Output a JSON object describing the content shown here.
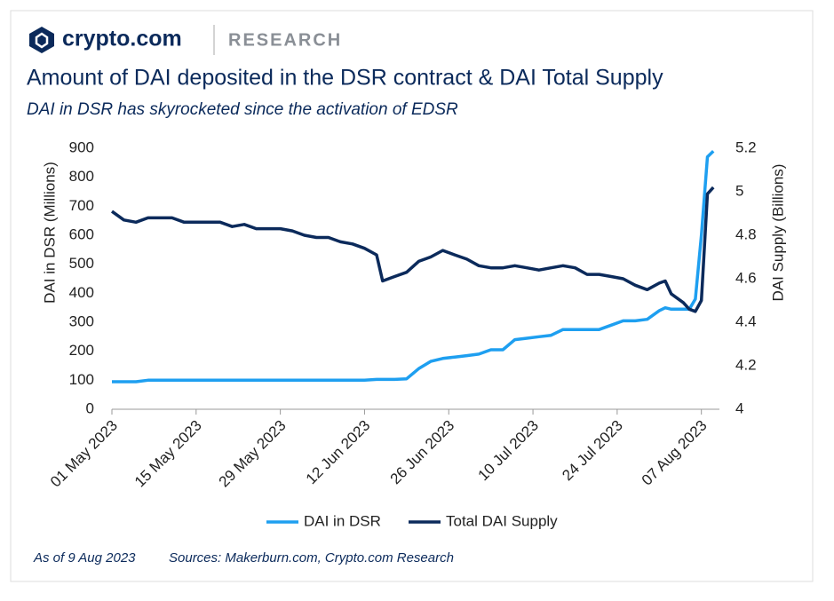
{
  "header": {
    "brand": "crypto.com",
    "section": "RESEARCH"
  },
  "chart_data": {
    "type": "line",
    "title": "Amount of DAI deposited in the DSR contract & DAI Total Supply",
    "subtitle": "DAI in DSR has skyrocketed since the activation of EDSR",
    "y_label": "DAI in DSR (Millions)",
    "y2_label": "DAI Supply (Billions)",
    "x": [
      "2023-05-01",
      "2023-05-03",
      "2023-05-05",
      "2023-05-07",
      "2023-05-09",
      "2023-05-11",
      "2023-05-13",
      "2023-05-15",
      "2023-05-17",
      "2023-05-19",
      "2023-05-21",
      "2023-05-23",
      "2023-05-25",
      "2023-05-27",
      "2023-05-29",
      "2023-05-31",
      "2023-06-02",
      "2023-06-04",
      "2023-06-06",
      "2023-06-08",
      "2023-06-10",
      "2023-06-12",
      "2023-06-14",
      "2023-06-15",
      "2023-06-17",
      "2023-06-19",
      "2023-06-21",
      "2023-06-23",
      "2023-06-25",
      "2023-06-27",
      "2023-06-29",
      "2023-07-01",
      "2023-07-03",
      "2023-07-05",
      "2023-07-07",
      "2023-07-09",
      "2023-07-11",
      "2023-07-13",
      "2023-07-15",
      "2023-07-17",
      "2023-07-19",
      "2023-07-21",
      "2023-07-23",
      "2023-07-25",
      "2023-07-27",
      "2023-07-29",
      "2023-07-31",
      "2023-08-01",
      "2023-08-02",
      "2023-08-04",
      "2023-08-05",
      "2023-08-06",
      "2023-08-07",
      "2023-08-08",
      "2023-08-09"
    ],
    "series": [
      {
        "name": "DAI in DSR",
        "color": "#1e9ff0",
        "axis": "y",
        "values": [
          95,
          95,
          95,
          100,
          100,
          100,
          100,
          100,
          100,
          100,
          100,
          100,
          100,
          100,
          100,
          100,
          100,
          100,
          100,
          100,
          100,
          100,
          103,
          103,
          103,
          105,
          140,
          165,
          175,
          180,
          185,
          190,
          205,
          205,
          240,
          245,
          250,
          255,
          275,
          275,
          275,
          275,
          290,
          305,
          305,
          310,
          340,
          350,
          345,
          345,
          345,
          380,
          600,
          870,
          890
        ]
      },
      {
        "name": "Total DAI Supply",
        "color": "#0b2a5b",
        "axis": "y2",
        "values": [
          4.91,
          4.87,
          4.86,
          4.88,
          4.88,
          4.88,
          4.86,
          4.86,
          4.86,
          4.86,
          4.84,
          4.85,
          4.83,
          4.83,
          4.83,
          4.82,
          4.8,
          4.79,
          4.79,
          4.77,
          4.76,
          4.74,
          4.71,
          4.59,
          4.61,
          4.63,
          4.68,
          4.7,
          4.73,
          4.71,
          4.69,
          4.66,
          4.65,
          4.65,
          4.66,
          4.65,
          4.64,
          4.65,
          4.66,
          4.65,
          4.62,
          4.62,
          4.61,
          4.6,
          4.57,
          4.55,
          4.58,
          4.59,
          4.53,
          4.49,
          4.46,
          4.45,
          4.5,
          4.99,
          5.02
        ]
      }
    ],
    "xlim": [
      "2023-05-01",
      "2023-08-10"
    ],
    "xticks": [
      {
        "value": "2023-05-01",
        "label": "01 May 2023"
      },
      {
        "value": "2023-05-15",
        "label": "15 May 2023"
      },
      {
        "value": "2023-05-29",
        "label": "29 May 2023"
      },
      {
        "value": "2023-06-12",
        "label": "12 Jun 2023"
      },
      {
        "value": "2023-06-26",
        "label": "26 Jun 2023"
      },
      {
        "value": "2023-07-10",
        "label": "10 Jul 2023"
      },
      {
        "value": "2023-07-24",
        "label": "24 Jul 2023"
      },
      {
        "value": "2023-08-07",
        "label": "07 Aug 2023"
      }
    ],
    "ylim": [
      0,
      900
    ],
    "yticks": [
      0,
      100,
      200,
      300,
      400,
      500,
      600,
      700,
      800,
      900
    ],
    "y2lim": [
      4,
      5.2
    ],
    "y2ticks": [
      4,
      4.2,
      4.4,
      4.6,
      4.8,
      5,
      5.2
    ],
    "legend": "bottom"
  },
  "footer": {
    "date": "As of 9 Aug 2023",
    "sources": "Sources: Makerburn.com, Crypto.com Research"
  }
}
